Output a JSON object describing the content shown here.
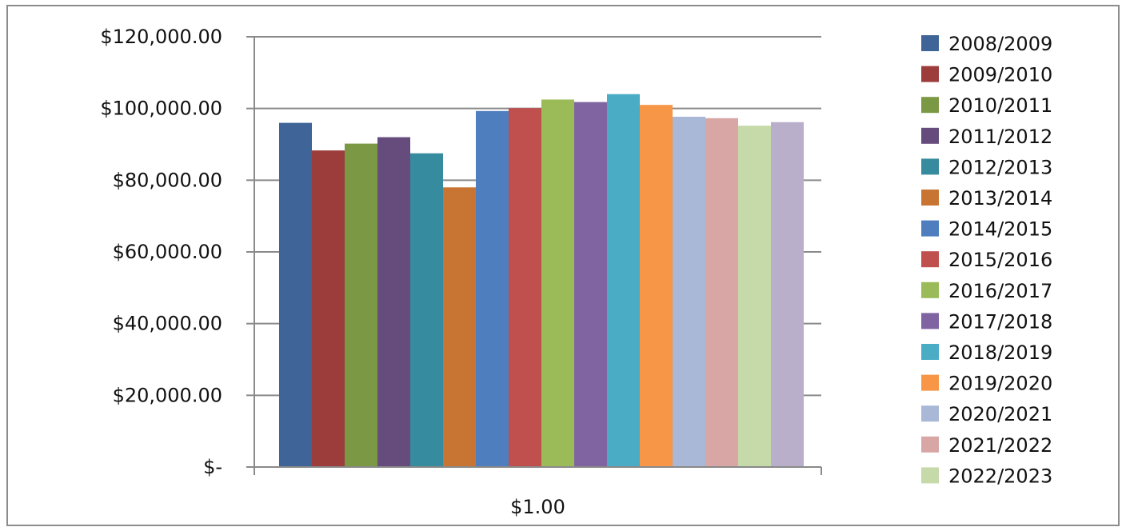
{
  "chart_data": {
    "type": "bar",
    "categories": [
      "$1.00"
    ],
    "y_ticks": [
      "$-",
      "$20,000.00",
      "$40,000.00",
      "$60,000.00",
      "$80,000.00",
      "$100,000.00",
      "$120,000.00"
    ],
    "ylim": [
      0,
      120000
    ],
    "grid": true,
    "legend_position": "right",
    "series": [
      {
        "name": "2008/2009",
        "color": "#3F6598",
        "values": [
          96000
        ]
      },
      {
        "name": "2009/2010",
        "color": "#9C3D3B",
        "values": [
          88300
        ]
      },
      {
        "name": "2010/2011",
        "color": "#7B9845",
        "values": [
          90200
        ]
      },
      {
        "name": "2011/2012",
        "color": "#654C7D",
        "values": [
          92000
        ]
      },
      {
        "name": "2012/2013",
        "color": "#378B9E",
        "values": [
          87500
        ]
      },
      {
        "name": "2013/2014",
        "color": "#C87534",
        "values": [
          78000
        ]
      },
      {
        "name": "2014/2015",
        "color": "#4F7EBF",
        "values": [
          99300
        ]
      },
      {
        "name": "2015/2016",
        "color": "#C0504D",
        "values": [
          100100
        ]
      },
      {
        "name": "2016/2017",
        "color": "#9BBB59",
        "values": [
          102500
        ]
      },
      {
        "name": "2017/2018",
        "color": "#8064A2",
        "values": [
          101800
        ]
      },
      {
        "name": "2018/2019",
        "color": "#4BACC6",
        "values": [
          104000
        ]
      },
      {
        "name": "2019/2020",
        "color": "#F79646",
        "values": [
          101000
        ]
      },
      {
        "name": "2020/2021",
        "color": "#A9B8D7",
        "values": [
          97700
        ]
      },
      {
        "name": "2021/2022",
        "color": "#D8A6A5",
        "values": [
          97300
        ]
      },
      {
        "name": "2022/2023",
        "color": "#C6D9A8",
        "values": [
          95200
        ]
      },
      {
        "name": "",
        "color": "#B9AFCB",
        "values": [
          96200
        ]
      }
    ]
  }
}
